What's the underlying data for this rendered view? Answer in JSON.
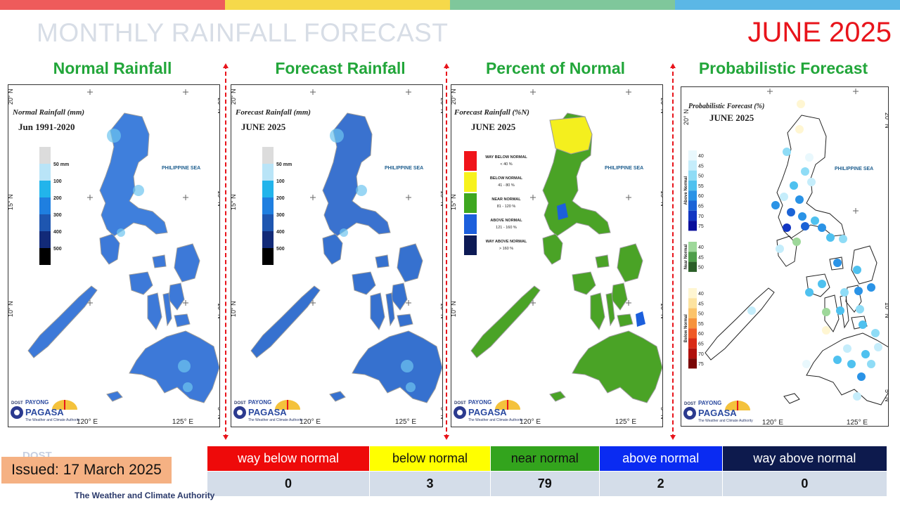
{
  "header": {
    "title": "MONTHLY RAINFALL FORECAST",
    "month": "JUNE 2025",
    "bar_colors": [
      "#ee5b5b",
      "#f6d94a",
      "#7fc79b",
      "#5bb7e6"
    ]
  },
  "panels": [
    {
      "heading": "Normal Rainfall",
      "map_title": "Normal Rainfall (mm)",
      "map_subtitle": "Jun 1991-2020",
      "legend": [
        "50 mm",
        "100",
        "200",
        "300",
        "400",
        "500"
      ],
      "legend_colors": [
        "#dcdcdc",
        "#b9e4f7",
        "#22b4eb",
        "#1f7fe0",
        "#1e56b0",
        "#122a78",
        "#000000"
      ],
      "land_color": "#3d79d8"
    },
    {
      "heading": "Forecast Rainfall",
      "map_title": "Forecast Rainfall (mm)",
      "map_subtitle": "JUNE 2025",
      "legend": [
        "50 mm",
        "100",
        "200",
        "300",
        "400",
        "500"
      ],
      "legend_colors": [
        "#dcdcdc",
        "#b9e4f7",
        "#22b4eb",
        "#1f7fe0",
        "#1e56b0",
        "#122a78",
        "#000000"
      ],
      "land_color": "#3671cf"
    },
    {
      "heading": "Percent of Normal",
      "map_title": "Forecast Rainfall (%N)",
      "map_subtitle": "JUNE 2025",
      "legend": [
        {
          "label": "WAY BELOW NORMAL",
          "range": "< 40 %",
          "color": "#f0141a"
        },
        {
          "label": "BELOW NORMAL",
          "range": "41 - 80 %",
          "color": "#f7f21c"
        },
        {
          "label": "NEAR NORMAL",
          "range": "81 - 120 %",
          "color": "#3ea71f"
        },
        {
          "label": "ABOVE NORMAL",
          "range": "121 - 160 %",
          "color": "#1c5fdc"
        },
        {
          "label": "WAY ABOVE NORMAL",
          "range": "> 160 %",
          "color": "#0d1a55"
        }
      ],
      "land_color": "#4aa326"
    },
    {
      "heading": "Probabilistic Forecast",
      "map_title": "Probabilistic Forecast (%)",
      "map_subtitle": "JUNE 2025",
      "legend_groups": [
        {
          "label": "Above Normal",
          "values": [
            "40",
            "45",
            "50",
            "55",
            "60",
            "65",
            "70",
            "75"
          ],
          "colors": [
            "#e9f8fd",
            "#c5edfb",
            "#8fdcf6",
            "#4fc1ef",
            "#2a93e6",
            "#1b63d6",
            "#1236c2",
            "#0a0f9c"
          ]
        },
        {
          "label": "Near Normal",
          "values": [
            "40",
            "45",
            "50"
          ],
          "colors": [
            "#9ed89a",
            "#4e9e4a",
            "#2b5f28"
          ]
        },
        {
          "label": "Below Normal",
          "values": [
            "40",
            "45",
            "50",
            "55",
            "60",
            "65",
            "70",
            "75"
          ],
          "colors": [
            "#fff6d2",
            "#fde3a0",
            "#fbc36a",
            "#f6923c",
            "#ef5a26",
            "#d92a16",
            "#b0100c",
            "#7a0606"
          ]
        }
      ]
    }
  ],
  "map_labels": {
    "sea": "PHILIPPINE SEA",
    "lat_20": "20° N",
    "lat_15": "15° N",
    "lat_10": "10° N",
    "lat_5": "5° N",
    "lon_120": "120° E",
    "lon_125": "125° E",
    "logo_dost": "DOST",
    "logo_payong": "PAYONG",
    "logo_pagasa": "PAGASA",
    "logo_tagline": "The Weather and Climate Authority"
  },
  "summary": {
    "categories": [
      {
        "label": "way below normal",
        "count": "0",
        "bg": "#ee0a0a",
        "fg": "#ffffff"
      },
      {
        "label": "below normal",
        "count": "3",
        "bg": "#ffff00",
        "fg": "#111111"
      },
      {
        "label": "near normal",
        "count": "79",
        "bg": "#33a41d",
        "fg": "#111111"
      },
      {
        "label": "above normal",
        "count": "2",
        "bg": "#0a2bf2",
        "fg": "#ffffff"
      },
      {
        "label": "way above normal",
        "count": "0",
        "bg": "#0d1a4d",
        "fg": "#ffffff"
      }
    ]
  },
  "issued": "Issued: 17 March 2025",
  "bottom_logo": {
    "dost": "DOST",
    "tagline": "The Weather and Climate Authority",
    "pg": "PAGASA"
  }
}
